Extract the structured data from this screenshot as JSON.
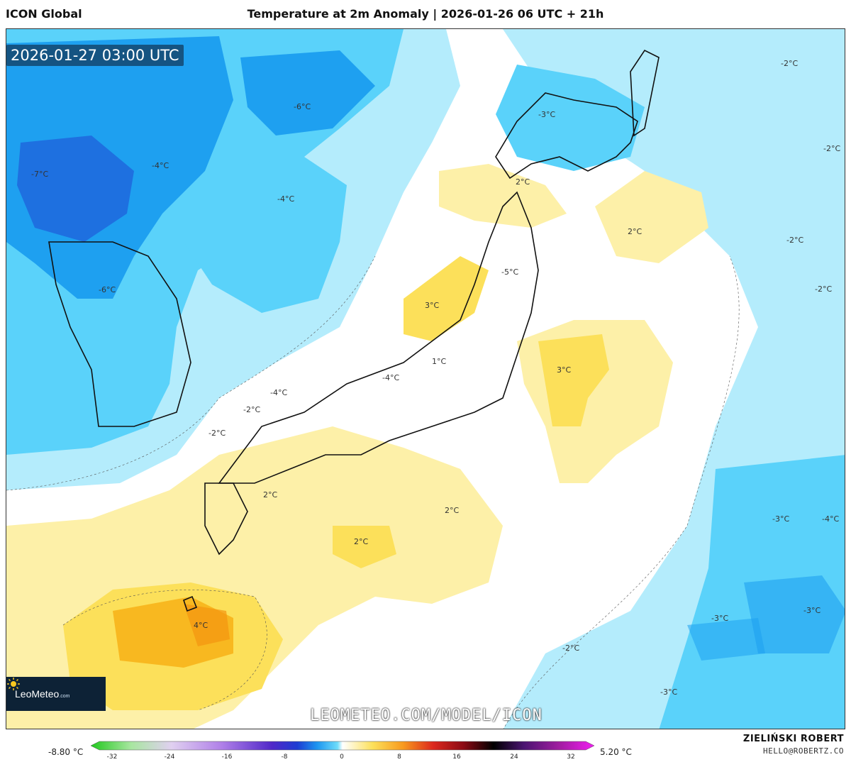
{
  "header": {
    "model_name": "ICON Global",
    "title": "Temperature at 2m Anomaly | 2026-01-26 06 UTC + 21h"
  },
  "map": {
    "valid_time": "2026-01-27 03:00 UTC",
    "watermark": "LEOMETEO.COM/MODEL/ICON",
    "logo": {
      "icon": "sun-icon",
      "text_main": "LeoMeteo",
      "text_suffix": ".com"
    },
    "contour_labels": [
      "-6°C",
      "-7°C",
      "-4°C",
      "-4°C",
      "-2°C",
      "-3°C",
      "-2°C",
      "2°C",
      "-2°C",
      "2°C",
      "-2°C",
      "-5°C",
      "3°C",
      "1°C",
      "3°C",
      "-4°C",
      "-4°C",
      "-2°C",
      "-6°C",
      "-2°C",
      "2°C",
      "2°C",
      "2°C",
      "4°C",
      "-3°C",
      "-4°C",
      "-3°C",
      "-3°C",
      "-2°C",
      "-3°C"
    ],
    "colors": {
      "cold_deep": "#1e64dc",
      "cold_mid": "#1ea0f0",
      "cold_light": "#5ad2fa",
      "cold_pale": "#b4ecfc",
      "neutral": "#ffffff",
      "warm_pale": "#fdf0a8",
      "warm_mid": "#fce05a",
      "warm_deep": "#f8b820",
      "land_outline": "#111111"
    }
  },
  "legend": {
    "min_value": "-8.80 °C",
    "max_value": "5.20 °C",
    "ticks": [
      "-32",
      "-24",
      "-16",
      "-8",
      "0",
      "8",
      "16",
      "24",
      "32"
    ],
    "colors": [
      "#22c81e",
      "#a8e6a0",
      "#e0d0f0",
      "#b080e8",
      "#5028c8",
      "#1e3cd2",
      "#1e96f0",
      "#6edcfa",
      "#ffffff",
      "#fce05a",
      "#f89a1e",
      "#dc281e",
      "#8c0a14",
      "#000000",
      "#4a1470",
      "#a01ea0",
      "#f01ef0"
    ]
  },
  "footer": {
    "author": "ZIELIŃSKI ROBERT",
    "email": "HELLO@ROBERTZ.CO"
  }
}
